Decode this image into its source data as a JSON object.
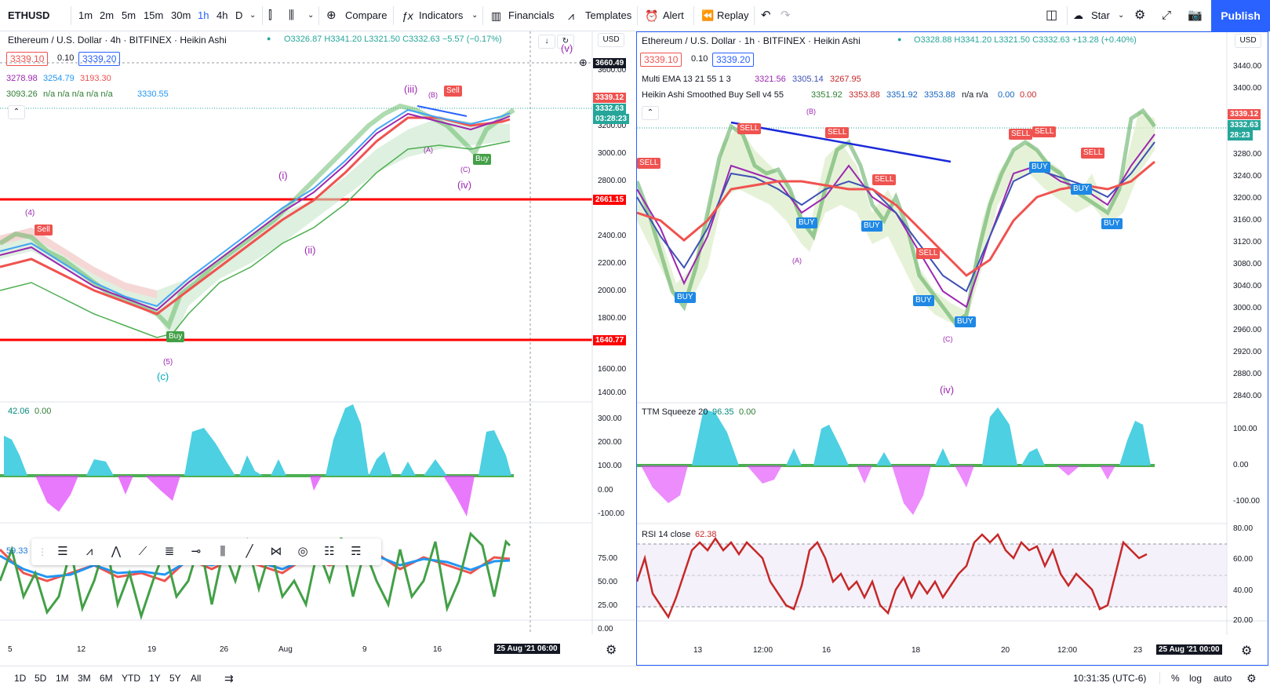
{
  "toolbar": {
    "symbol": "ETHUSD",
    "timeframes": [
      "1m",
      "2m",
      "5m",
      "15m",
      "30m",
      "1h",
      "4h",
      "D"
    ],
    "active_timeframe": "1h",
    "compare": "Compare",
    "indicators": "Indicators",
    "financials": "Financials",
    "templates": "Templates",
    "alert": "Alert",
    "replay": "Replay",
    "star": "Star",
    "publish": "Publish"
  },
  "left_chart": {
    "title": "Ethereum / U.S. Dollar · 4h · BITFINEX · Heikin Ashi",
    "ohlc": "O3326.87 H3341.20 L3321.50 C3332.63 −5.57 (−0.17%)",
    "bid": "3339.10",
    "spread": "0.10",
    "ask": "3339.20",
    "ind1": [
      "3278.98",
      "3254.79",
      "3193.30"
    ],
    "ind2_first": "3093.26",
    "ind2_na": "n/a n/a n/a n/a n/a",
    "ind2_last": "3330.55",
    "currency": "USD",
    "axis_ticks": [
      "3600.00",
      "3400.00",
      "3200.00",
      "3000.00",
      "2800.00",
      "2600.00",
      "2400.00",
      "2200.00",
      "2000.00",
      "1800.00",
      "1600.00",
      "1400.00"
    ],
    "tag_crosshair": "3660.49",
    "tag_price_red": "3339.12",
    "tag_price_green": "3332.63",
    "tag_countdown": "03:28:23",
    "tag_2661": "2661.15",
    "tag_1640": "1640.77",
    "osc_value": "42.06",
    "osc_value2": "0.00",
    "osc_ticks": [
      "300.00",
      "200.00",
      "100.00",
      "0.00",
      "-100.00"
    ],
    "rsi_value": "59.33",
    "rsi_ticks": [
      "75.00",
      "50.00",
      "25.00",
      "0.00"
    ],
    "time_ticks": [
      "5",
      "12",
      "19",
      "26",
      "Aug",
      "9",
      "16"
    ],
    "time_tag": "25 Aug '21  06:00",
    "wave_labels": [
      "(4)",
      "(5)",
      "(c)",
      "(i)",
      "(ii)",
      "(iii)",
      "(iv)",
      "(v)",
      "(A)",
      "(B)",
      "(C)"
    ],
    "signals": [
      "Sell",
      "Buy",
      "Sell",
      "Buy"
    ],
    "price_lines": [
      {
        "label": "2661.15",
        "value": 2661.15
      },
      {
        "label": "1640.77",
        "value": 1640.77
      }
    ]
  },
  "right_chart": {
    "title": "Ethereum / U.S. Dollar · 1h · BITFINEX · Heikin Ashi",
    "ohlc": "O3328.88 H3341.20 L3321.50 C3332.63 +13.28 (+0.40%)",
    "bid": "3339.10",
    "spread": "0.10",
    "ask": "3339.20",
    "ema_label": "Multi EMA 13 21 55 1 3",
    "ema_values": [
      "3321.56",
      "3305.14",
      "3267.95"
    ],
    "ha_label": "Heikin Ashi Smoothed Buy Sell v4 55",
    "ha_values": [
      "3351.92",
      "3353.88",
      "3351.92",
      "3353.88"
    ],
    "ha_na": "n/a n/a",
    "ha_tail": [
      "0.00",
      "0.00"
    ],
    "currency": "USD",
    "axis_ticks": [
      "3440.00",
      "3400.00",
      "3360.00",
      "3320.00",
      "3280.00",
      "3240.00",
      "3200.00",
      "3160.00",
      "3120.00",
      "3080.00",
      "3040.00",
      "3000.00",
      "2960.00",
      "2920.00",
      "2880.00",
      "2840.00"
    ],
    "tag_price_red": "3339.12",
    "tag_price_green": "3332.63",
    "tag_countdown": "28:23",
    "ttm_label": "TTM Squeeze 20",
    "ttm_value": "96.35",
    "ttm_value2": "0.00",
    "ttm_ticks": [
      "100.00",
      "0.00",
      "-100.00"
    ],
    "rsi_label": "RSI 14 close",
    "rsi_value": "62.38",
    "rsi_ticks": [
      "80.00",
      "60.00",
      "40.00",
      "20.00"
    ],
    "time_ticks": [
      "13",
      "12:00",
      "16",
      "18",
      "20",
      "12:00",
      "23"
    ],
    "time_tag": "25 Aug '21  00:00",
    "wave_labels": [
      "(A)",
      "(B)",
      "(C)",
      "(iv)"
    ],
    "signals": [
      "SELL",
      "SELL",
      "SELL",
      "SELL",
      "SELL",
      "SELL",
      "SELL",
      "SELL",
      "BUY",
      "BUY",
      "BUY",
      "BUY",
      "BUY",
      "BUY",
      "BUY",
      "BUY"
    ]
  },
  "bottom": {
    "ranges": [
      "1D",
      "5D",
      "1M",
      "3M",
      "6M",
      "YTD",
      "1Y",
      "5Y",
      "All"
    ],
    "clock": "10:31:35 (UTC-6)",
    "percent": "%",
    "log": "log",
    "auto": "auto"
  },
  "colors": {
    "accent": "#2962ff",
    "up": "#26a69a",
    "down": "#ef5350",
    "red_line": "#ff0000"
  }
}
